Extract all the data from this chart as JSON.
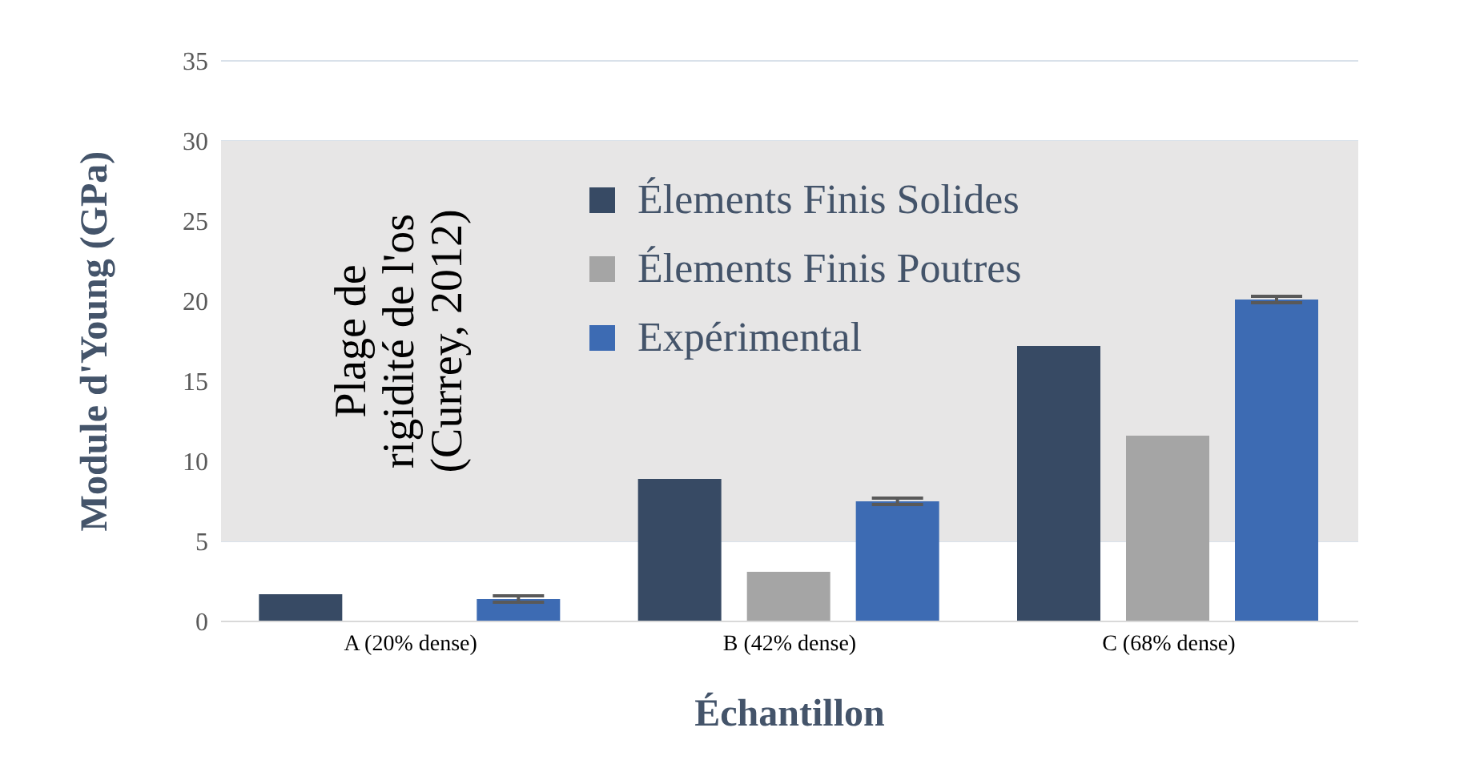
{
  "chart_data": {
    "type": "bar",
    "xlabel": "Échantillon",
    "ylabel": "Module d'Young (GPa)",
    "categories": [
      "A (20% dense)",
      "B (42% dense)",
      "C (68% dense)"
    ],
    "series": [
      {
        "name": "Élements Finis Solides",
        "color": "#374a64",
        "values": [
          1.7,
          8.9,
          17.2
        ]
      },
      {
        "name": "Élements Finis Poutres",
        "color": "#a5a5a5",
        "values": [
          null,
          3.1,
          11.6
        ]
      },
      {
        "name": "Expérimental",
        "color": "#3d6bb3",
        "values": [
          1.4,
          7.5,
          20.1
        ],
        "errors": [
          0.2,
          0.2,
          0.2
        ]
      }
    ],
    "ylim": [
      0,
      35
    ],
    "yticks": [
      0,
      5,
      10,
      15,
      20,
      25,
      30,
      35
    ],
    "grid": "y",
    "legend": "top",
    "bands": [
      {
        "axis": "y",
        "from": 5,
        "to": 30,
        "label": "Plage de rigidité de l'os (Currey, 2012)",
        "color": "#e7e6e6"
      }
    ]
  }
}
